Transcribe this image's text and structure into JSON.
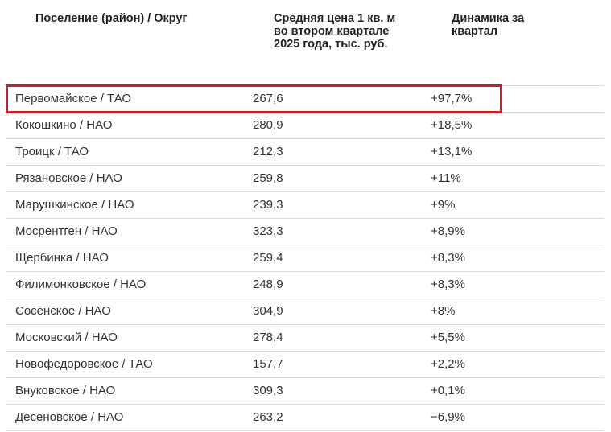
{
  "colors": {
    "highlight": "#c8202a",
    "divider": "#dddddd",
    "text": "#333333"
  },
  "table": {
    "headers": [
      "Поселение (район) / Округ",
      "Средняя цена 1 кв. м во втором квартале 2025 года, тыс. руб.",
      "Динамика за квартал"
    ],
    "rows": [
      {
        "place": "Первомайское / ТАО",
        "price": "267,6",
        "change": "+97,7%",
        "highlighted": true
      },
      {
        "place": "Кокошкино / НАО",
        "price": "280,9",
        "change": "+18,5%"
      },
      {
        "place": "Троицк / ТАО",
        "price": "212,3",
        "change": "+13,1%"
      },
      {
        "place": "Рязановское / НАО",
        "price": "259,8",
        "change": "+11%"
      },
      {
        "place": "Марушкинское / НАО",
        "price": "239,3",
        "change": "+9%"
      },
      {
        "place": "Мосрентген / НАО",
        "price": "323,3",
        "change": "+8,9%"
      },
      {
        "place": "Щербинка / НАО",
        "price": "259,4",
        "change": "+8,3%"
      },
      {
        "place": "Филимонковское / НАО",
        "price": "248,9",
        "change": "+8,3%"
      },
      {
        "place": "Сосенское / НАО",
        "price": "304,9",
        "change": "+8%"
      },
      {
        "place": "Московский / НАО",
        "price": "278,4",
        "change": "+5,5%"
      },
      {
        "place": "Новофедоровское / ТАО",
        "price": "157,7",
        "change": "+2,2%"
      },
      {
        "place": "Внуковское / НАО",
        "price": "309,3",
        "change": "+0,1%"
      },
      {
        "place": "Десеновское / НАО",
        "price": "263,2",
        "change": "−6,9%"
      }
    ]
  }
}
